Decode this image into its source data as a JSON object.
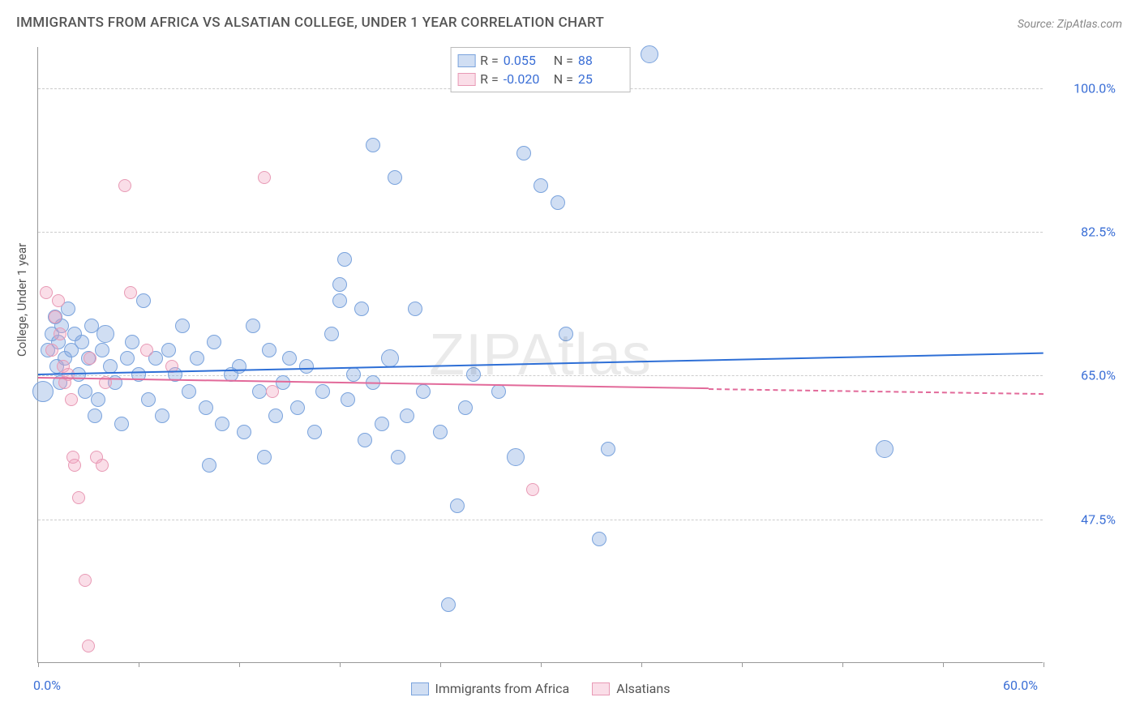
{
  "title": "IMMIGRANTS FROM AFRICA VS ALSATIAN COLLEGE, UNDER 1 YEAR CORRELATION CHART",
  "source": "Source: ZipAtlas.com",
  "watermark": "ZIPAtlas",
  "ylabel": "College, Under 1 year",
  "chart": {
    "type": "scatter",
    "xlim": [
      0,
      60
    ],
    "ylim": [
      30,
      105
    ],
    "x_ticks": [
      0,
      6,
      12,
      18,
      24,
      30,
      36,
      42,
      48,
      54,
      60
    ],
    "x_tick_labels_shown": {
      "0": "0.0%",
      "60": "60.0%"
    },
    "y_gridlines": [
      47.5,
      65.0,
      82.5,
      100.0
    ],
    "y_tick_labels": [
      "47.5%",
      "65.0%",
      "82.5%",
      "100.0%"
    ],
    "background_color": "#ffffff",
    "grid_color": "#cccccc",
    "axis_color": "#999999",
    "series": [
      {
        "name": "Immigrants from Africa",
        "legend_key": "africa",
        "color_fill": "rgba(120,160,220,0.35)",
        "color_stroke": "#7aa3dd",
        "trend_color": "#2e6fd6",
        "marker_radius": 9,
        "R": "0.055",
        "N": "88",
        "trend": {
          "x0": 0,
          "y0": 65.2,
          "x1": 60,
          "y1": 67.8
        },
        "points": [
          {
            "x": 0.3,
            "y": 63,
            "r": 13
          },
          {
            "x": 0.6,
            "y": 68
          },
          {
            "x": 0.8,
            "y": 70
          },
          {
            "x": 1.0,
            "y": 72
          },
          {
            "x": 1.1,
            "y": 66
          },
          {
            "x": 1.2,
            "y": 69
          },
          {
            "x": 1.3,
            "y": 64
          },
          {
            "x": 1.4,
            "y": 71
          },
          {
            "x": 1.6,
            "y": 67
          },
          {
            "x": 1.8,
            "y": 73
          },
          {
            "x": 2.0,
            "y": 68
          },
          {
            "x": 2.2,
            "y": 70
          },
          {
            "x": 2.4,
            "y": 65
          },
          {
            "x": 2.6,
            "y": 69
          },
          {
            "x": 2.8,
            "y": 63
          },
          {
            "x": 3.0,
            "y": 67
          },
          {
            "x": 3.2,
            "y": 71
          },
          {
            "x": 3.4,
            "y": 60
          },
          {
            "x": 3.6,
            "y": 62
          },
          {
            "x": 3.8,
            "y": 68
          },
          {
            "x": 4.0,
            "y": 70,
            "r": 11
          },
          {
            "x": 4.3,
            "y": 66
          },
          {
            "x": 4.6,
            "y": 64
          },
          {
            "x": 5.0,
            "y": 59
          },
          {
            "x": 5.3,
            "y": 67
          },
          {
            "x": 5.6,
            "y": 69
          },
          {
            "x": 6.0,
            "y": 65
          },
          {
            "x": 6.3,
            "y": 74
          },
          {
            "x": 6.6,
            "y": 62
          },
          {
            "x": 7.0,
            "y": 67
          },
          {
            "x": 7.4,
            "y": 60
          },
          {
            "x": 7.8,
            "y": 68
          },
          {
            "x": 8.2,
            "y": 65
          },
          {
            "x": 8.6,
            "y": 71
          },
          {
            "x": 9.0,
            "y": 63
          },
          {
            "x": 9.5,
            "y": 67
          },
          {
            "x": 10.0,
            "y": 61
          },
          {
            "x": 10.2,
            "y": 54
          },
          {
            "x": 10.5,
            "y": 69
          },
          {
            "x": 11.0,
            "y": 59
          },
          {
            "x": 11.5,
            "y": 65
          },
          {
            "x": 12.0,
            "y": 66
          },
          {
            "x": 12.3,
            "y": 58
          },
          {
            "x": 12.8,
            "y": 71
          },
          {
            "x": 13.2,
            "y": 63
          },
          {
            "x": 13.5,
            "y": 55
          },
          {
            "x": 13.8,
            "y": 68
          },
          {
            "x": 14.2,
            "y": 60
          },
          {
            "x": 14.6,
            "y": 64
          },
          {
            "x": 15.0,
            "y": 67
          },
          {
            "x": 15.5,
            "y": 61
          },
          {
            "x": 16.0,
            "y": 66
          },
          {
            "x": 16.5,
            "y": 58
          },
          {
            "x": 17.0,
            "y": 63
          },
          {
            "x": 17.5,
            "y": 70
          },
          {
            "x": 18.0,
            "y": 76
          },
          {
            "x": 18.0,
            "y": 74
          },
          {
            "x": 18.3,
            "y": 79
          },
          {
            "x": 18.5,
            "y": 62
          },
          {
            "x": 18.8,
            "y": 65
          },
          {
            "x": 19.3,
            "y": 73
          },
          {
            "x": 19.5,
            "y": 57
          },
          {
            "x": 20.0,
            "y": 64
          },
          {
            "x": 20.0,
            "y": 93
          },
          {
            "x": 20.5,
            "y": 59
          },
          {
            "x": 21.0,
            "y": 67,
            "r": 11
          },
          {
            "x": 21.3,
            "y": 89
          },
          {
            "x": 21.5,
            "y": 55
          },
          {
            "x": 22.0,
            "y": 60
          },
          {
            "x": 22.5,
            "y": 73
          },
          {
            "x": 23.0,
            "y": 63
          },
          {
            "x": 24.0,
            "y": 58
          },
          {
            "x": 24.5,
            "y": 37
          },
          {
            "x": 25.0,
            "y": 49
          },
          {
            "x": 25.5,
            "y": 61
          },
          {
            "x": 26.0,
            "y": 65
          },
          {
            "x": 27.5,
            "y": 63
          },
          {
            "x": 28.5,
            "y": 55,
            "r": 11
          },
          {
            "x": 29.0,
            "y": 92
          },
          {
            "x": 30.0,
            "y": 88
          },
          {
            "x": 31.0,
            "y": 86
          },
          {
            "x": 31.5,
            "y": 70
          },
          {
            "x": 33.5,
            "y": 45
          },
          {
            "x": 34.0,
            "y": 56
          },
          {
            "x": 36.5,
            "y": 104,
            "r": 11
          },
          {
            "x": 50.5,
            "y": 56,
            "r": 11
          }
        ]
      },
      {
        "name": "Alsatians",
        "legend_key": "alsatians",
        "color_fill": "rgba(240,160,190,0.35)",
        "color_stroke": "#e89ab5",
        "trend_color": "#e26a9a",
        "marker_radius": 8,
        "R": "-0.020",
        "N": "25",
        "trend": {
          "x0": 0,
          "y0": 64.8,
          "x1": 40,
          "y1": 63.5,
          "x2": 60,
          "y2": 62.9
        },
        "points": [
          {
            "x": 0.5,
            "y": 75
          },
          {
            "x": 0.8,
            "y": 68
          },
          {
            "x": 1.0,
            "y": 72
          },
          {
            "x": 1.2,
            "y": 74
          },
          {
            "x": 1.3,
            "y": 70
          },
          {
            "x": 1.5,
            "y": 66
          },
          {
            "x": 1.6,
            "y": 64
          },
          {
            "x": 1.8,
            "y": 65
          },
          {
            "x": 2.0,
            "y": 62
          },
          {
            "x": 2.1,
            "y": 55
          },
          {
            "x": 2.2,
            "y": 54
          },
          {
            "x": 2.4,
            "y": 50
          },
          {
            "x": 2.8,
            "y": 40
          },
          {
            "x": 3.0,
            "y": 32
          },
          {
            "x": 3.1,
            "y": 67
          },
          {
            "x": 3.5,
            "y": 55
          },
          {
            "x": 3.8,
            "y": 54
          },
          {
            "x": 4.0,
            "y": 64
          },
          {
            "x": 5.2,
            "y": 88
          },
          {
            "x": 5.5,
            "y": 75
          },
          {
            "x": 6.5,
            "y": 68
          },
          {
            "x": 8.0,
            "y": 66
          },
          {
            "x": 13.5,
            "y": 89
          },
          {
            "x": 14.0,
            "y": 63
          },
          {
            "x": 29.5,
            "y": 51
          }
        ]
      }
    ]
  },
  "legend_bottom": [
    {
      "key": "africa",
      "label": "Immigrants from Africa"
    },
    {
      "key": "alsatians",
      "label": "Alsatians"
    }
  ]
}
